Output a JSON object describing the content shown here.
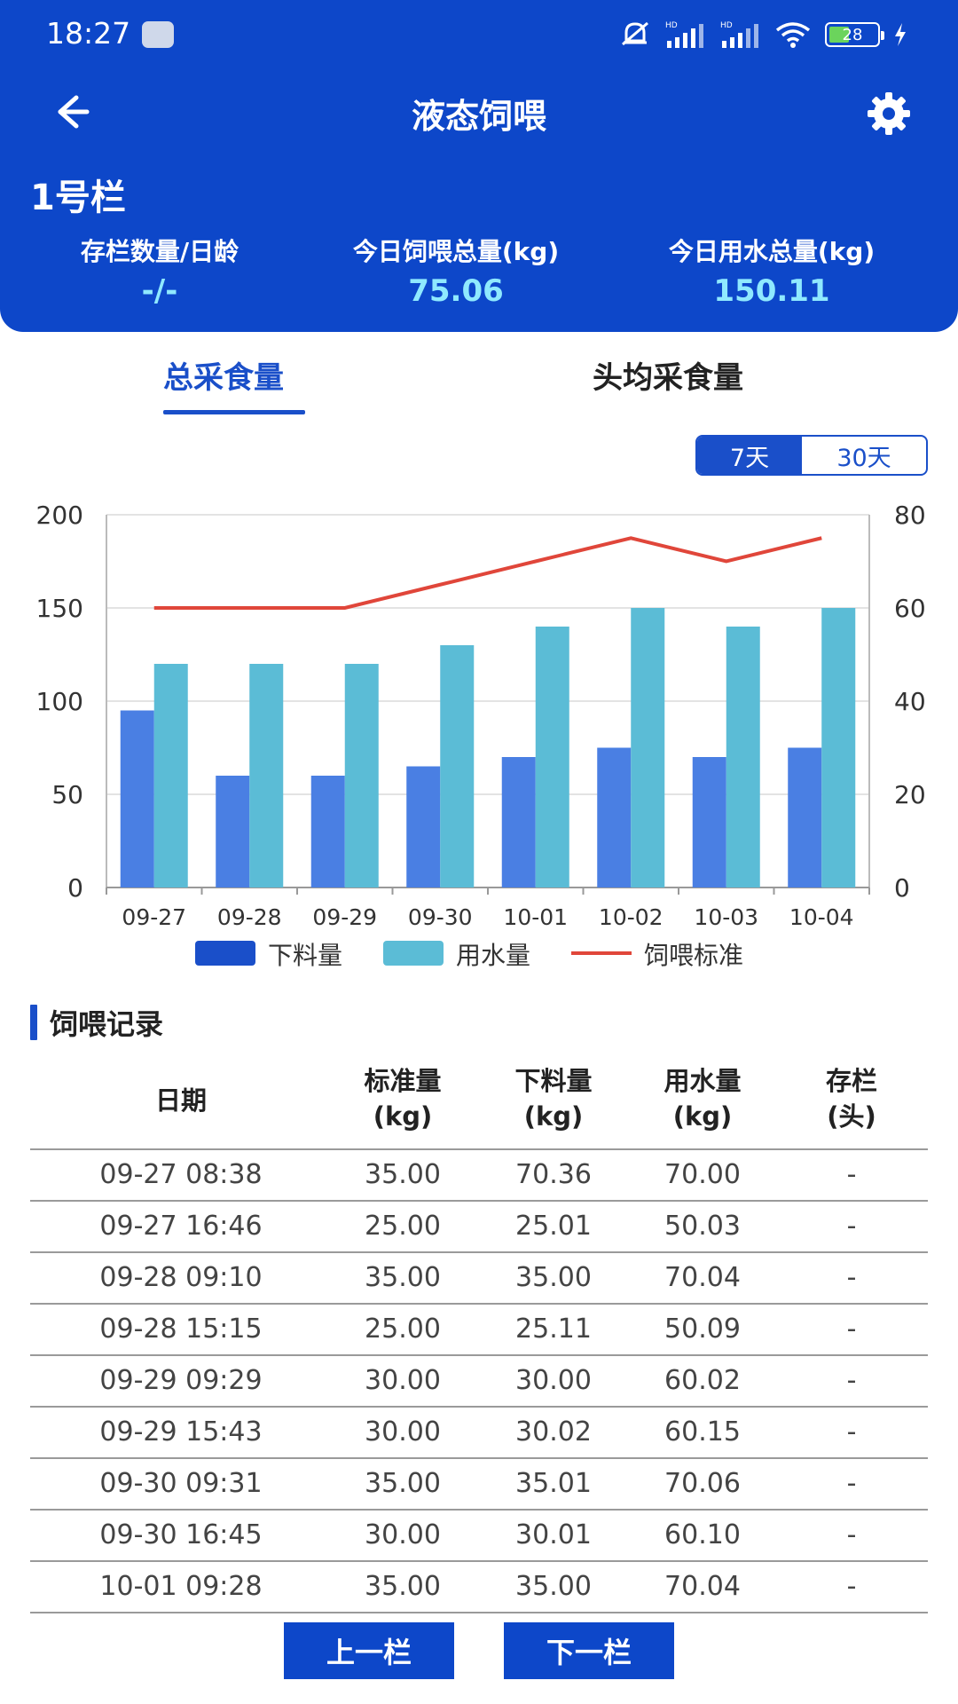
{
  "status": {
    "time": "18:27",
    "battery": "28"
  },
  "nav": {
    "title": "液态饲喂"
  },
  "pen": {
    "title": "1号栏",
    "stats": [
      {
        "label": "存栏数量/日龄",
        "value": "-/-"
      },
      {
        "label": "今日饲喂总量(kg)",
        "value": "75.06"
      },
      {
        "label": "今日用水总量(kg)",
        "value": "150.11"
      }
    ]
  },
  "tabs": [
    "总采食量",
    "头均采食量"
  ],
  "range": [
    "7天",
    "30天"
  ],
  "chart_data": {
    "type": "bar",
    "categories": [
      "09-27",
      "09-28",
      "09-29",
      "09-30",
      "10-01",
      "10-02",
      "10-03",
      "10-04"
    ],
    "series": [
      {
        "name": "下料量",
        "type": "bar",
        "axis": "left",
        "color": "#4a7fe3",
        "values": [
          95,
          60,
          60,
          65,
          70,
          75,
          70,
          75
        ]
      },
      {
        "name": "用水量",
        "type": "bar",
        "axis": "left",
        "color": "#5bbcd6",
        "values": [
          120,
          120,
          120,
          130,
          140,
          150,
          140,
          150
        ]
      },
      {
        "name": "饲喂标准",
        "type": "line",
        "axis": "right",
        "color": "#e0463a",
        "values": [
          60,
          60,
          60,
          65,
          70,
          75,
          70,
          75
        ]
      }
    ],
    "y_left": {
      "ticks": [
        "200",
        "150",
        "100",
        "50",
        "0"
      ],
      "range": [
        0,
        200
      ]
    },
    "y_right": {
      "ticks": [
        "80",
        "60",
        "40",
        "20",
        "0"
      ],
      "range": [
        0,
        80
      ]
    },
    "grid": true,
    "legend": "bottom"
  },
  "records": {
    "title": "饲喂记录",
    "headers": [
      {
        "line1": "日期",
        "line2": ""
      },
      {
        "line1": "标准量",
        "line2": "(kg)"
      },
      {
        "line1": "下料量",
        "line2": "(kg)"
      },
      {
        "line1": "用水量",
        "line2": "(kg)"
      },
      {
        "line1": "存栏",
        "line2": "(头)"
      }
    ],
    "rows": [
      [
        "09-27 08:38",
        "35.00",
        "70.36",
        "70.00",
        "-"
      ],
      [
        "09-27 16:46",
        "25.00",
        "25.01",
        "50.03",
        "-"
      ],
      [
        "09-28 09:10",
        "35.00",
        "35.00",
        "70.04",
        "-"
      ],
      [
        "09-28 15:15",
        "25.00",
        "25.11",
        "50.09",
        "-"
      ],
      [
        "09-29 09:29",
        "30.00",
        "30.00",
        "60.02",
        "-"
      ],
      [
        "09-29 15:43",
        "30.00",
        "30.02",
        "60.15",
        "-"
      ],
      [
        "09-30 09:31",
        "35.00",
        "35.01",
        "70.06",
        "-"
      ],
      [
        "09-30 16:45",
        "30.00",
        "30.01",
        "60.10",
        "-"
      ],
      [
        "10-01 09:28",
        "35.00",
        "35.00",
        "70.04",
        "-"
      ]
    ]
  },
  "buttons": {
    "prev": "上一栏",
    "next": "下一栏"
  }
}
